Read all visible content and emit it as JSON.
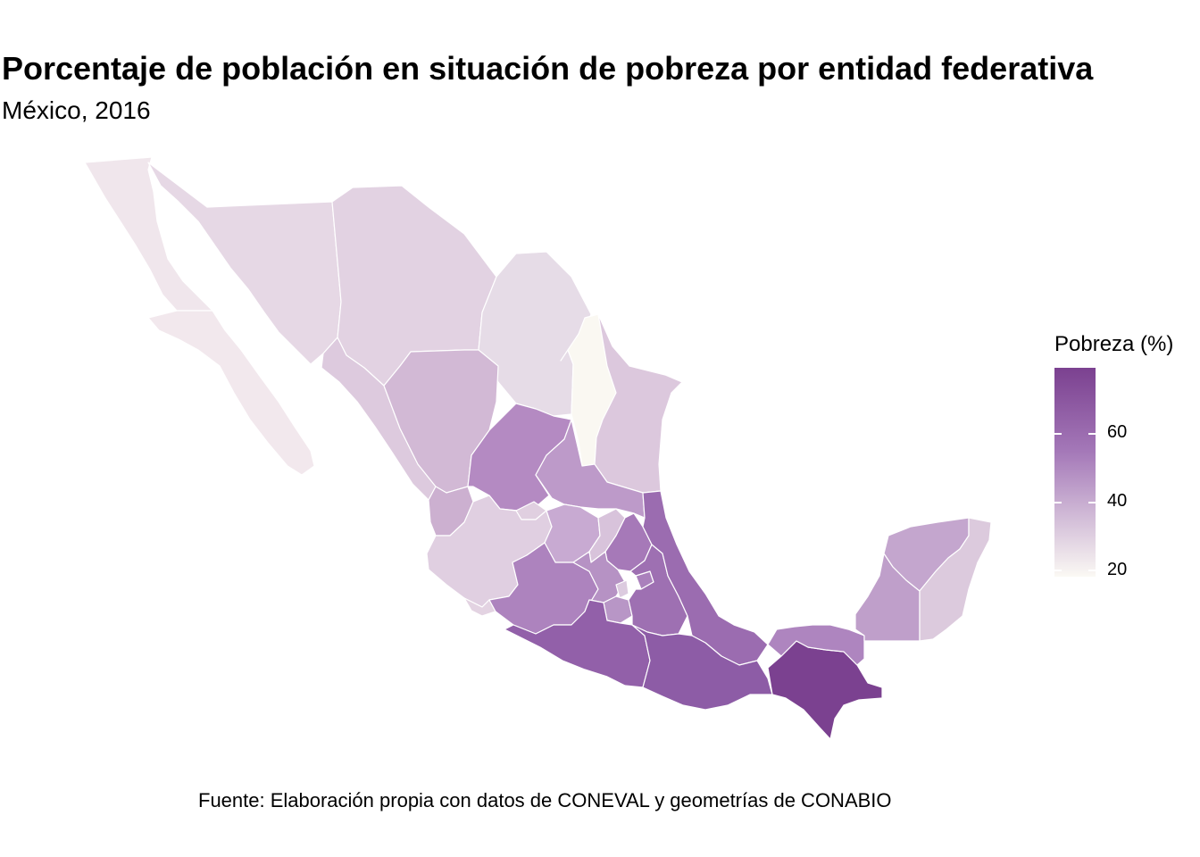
{
  "title": "Porcentaje de población en situación de pobreza por entidad federativa",
  "subtitle": "México, 2016",
  "caption": "Fuente: Elaboración propia con datos de CONEVAL y geometrías de CONABIO",
  "legend": {
    "title": "Pobreza (%)",
    "ticks": [
      "60",
      "40",
      "20"
    ],
    "color_high": "#7b4190",
    "color_mid": "#a478b8",
    "color_low": "#fbf9f4"
  },
  "map": {
    "border_color": "#ffffff",
    "regions": [
      {
        "id": "baja-california",
        "color": "#f0e6ec"
      },
      {
        "id": "baja-california-sur",
        "color": "#f2e8ed"
      },
      {
        "id": "sonora",
        "color": "#e6d8e5"
      },
      {
        "id": "chihuahua",
        "color": "#e2d2e2"
      },
      {
        "id": "coahuila",
        "color": "#e6dce7"
      },
      {
        "id": "nuevo-leon",
        "color": "#faf8f2"
      },
      {
        "id": "tamaulipas",
        "color": "#dcc8dd"
      },
      {
        "id": "sinaloa",
        "color": "#ddcade"
      },
      {
        "id": "durango",
        "color": "#d2b9d5"
      },
      {
        "id": "zacatecas",
        "color": "#b48ac2"
      },
      {
        "id": "san-luis-potosi",
        "color": "#bd9ac9"
      },
      {
        "id": "nayarit",
        "color": "#ccb0d0"
      },
      {
        "id": "aguascalientes",
        "color": "#e0cfe0"
      },
      {
        "id": "jalisco",
        "color": "#e0cfe1"
      },
      {
        "id": "colima",
        "color": "#e3d3e2"
      },
      {
        "id": "guanajuato",
        "color": "#c8aad2"
      },
      {
        "id": "queretaro",
        "color": "#d8c3db"
      },
      {
        "id": "hidalgo",
        "color": "#a679b8"
      },
      {
        "id": "michoacan",
        "color": "#ad83be"
      },
      {
        "id": "mexico",
        "color": "#b692c4"
      },
      {
        "id": "cdmx",
        "color": "#dccbdf"
      },
      {
        "id": "morelos",
        "color": "#b896c6"
      },
      {
        "id": "tlaxcala",
        "color": "#aa80bc"
      },
      {
        "id": "puebla",
        "color": "#9e70b2"
      },
      {
        "id": "veracruz",
        "color": "#9b6cb0"
      },
      {
        "id": "guerrero",
        "color": "#9260a9"
      },
      {
        "id": "oaxaca",
        "color": "#8d5ca6"
      },
      {
        "id": "chiapas",
        "color": "#7b4190"
      },
      {
        "id": "tabasco",
        "color": "#ae85bf"
      },
      {
        "id": "campeche",
        "color": "#bf9fca"
      },
      {
        "id": "yucatan",
        "color": "#c4a6ce"
      },
      {
        "id": "quintana-roo",
        "color": "#dccadd"
      }
    ]
  }
}
